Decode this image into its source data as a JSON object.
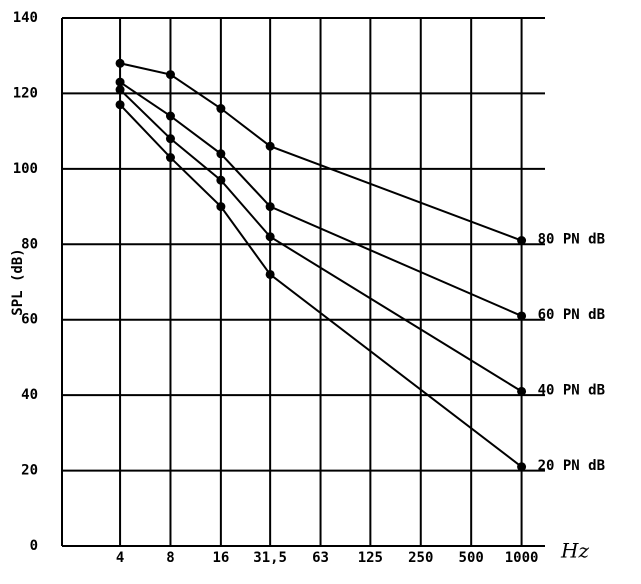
{
  "chart_data": {
    "type": "line",
    "x_label": "Hz",
    "y_label": "SPL (dB)",
    "x": [
      4,
      8,
      16,
      31.5,
      1000
    ],
    "x_scale": "log",
    "xlim": [
      1.8,
      1380
    ],
    "xticks": [
      4,
      8,
      16,
      {
        "value": 31.5,
        "label": "31,5"
      },
      63,
      125,
      250,
      500,
      1000
    ],
    "ylim": [
      0,
      140
    ],
    "yticks": [
      0,
      20,
      40,
      60,
      80,
      100,
      120,
      140
    ],
    "grid": true,
    "series": [
      {
        "name": "80 PN  dB",
        "color": "#000000",
        "values": [
          128,
          125,
          116,
          106,
          81
        ]
      },
      {
        "name": "60 PN dB",
        "color": "#000000",
        "values": [
          123,
          114,
          104,
          90,
          61
        ]
      },
      {
        "name": "40 PN  dB",
        "color": "#000000",
        "values": [
          121,
          108,
          97,
          82,
          41
        ]
      },
      {
        "name": "20 PN  dB",
        "color": "#000000",
        "values": [
          117,
          103,
          90,
          72,
          21
        ]
      }
    ]
  }
}
